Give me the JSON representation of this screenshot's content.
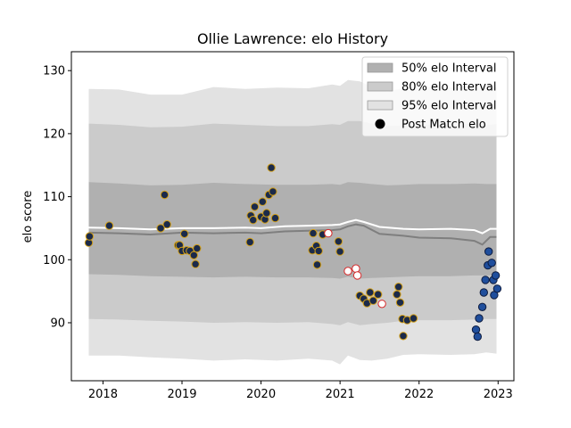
{
  "chart_data": {
    "type": "scatter",
    "title": "Ollie Lawrence: elo History",
    "xlabel": "",
    "ylabel": "elo score",
    "xlim": [
      2017.6,
      2023.2
    ],
    "ylim": [
      80.8,
      133
    ],
    "xticks": [
      2018,
      2019,
      2020,
      2021,
      2022,
      2023
    ],
    "xtick_labels": [
      "2018",
      "2019",
      "2020",
      "2021",
      "2022",
      "2023"
    ],
    "yticks": [
      90,
      100,
      110,
      120,
      130
    ],
    "ytick_labels": [
      "90",
      "100",
      "110",
      "120",
      "130"
    ],
    "grid": false,
    "legend_placement": "top-right",
    "legend": [
      {
        "label": "50% elo Interval",
        "kind": "patch",
        "color": "#b0b0b0"
      },
      {
        "label": "80% elo Interval",
        "kind": "patch",
        "color": "#cbcbcb"
      },
      {
        "label": "95% elo Interval",
        "kind": "patch",
        "color": "#e2e2e2"
      },
      {
        "label": "Post Match elo",
        "kind": "marker",
        "color": "#000000"
      }
    ],
    "bands": {
      "x": [
        2017.82,
        2018.2,
        2018.6,
        2019.0,
        2019.4,
        2019.8,
        2020.2,
        2020.6,
        2020.9,
        2021.0,
        2021.1,
        2021.25,
        2021.4,
        2021.6,
        2021.8,
        2022.0,
        2022.4,
        2022.7,
        2022.85,
        2022.98
      ],
      "p95_hi": [
        127.1,
        127.0,
        126.2,
        126.2,
        127.4,
        127.1,
        127.3,
        127.2,
        127.8,
        127.6,
        128.5,
        128.3,
        127.5,
        126.7,
        127.2,
        127.4,
        127.3,
        127.5,
        127.3,
        127.4
      ],
      "p95_lo": [
        84.8,
        84.8,
        84.5,
        84.3,
        84.0,
        84.2,
        84.0,
        84.3,
        84.0,
        83.4,
        84.8,
        84.1,
        84.0,
        84.3,
        84.9,
        85.0,
        84.9,
        85.0,
        85.3,
        85.1
      ],
      "p80_hi": [
        121.6,
        121.4,
        121.0,
        121.1,
        121.6,
        121.4,
        121.2,
        121.2,
        121.5,
        121.4,
        122.0,
        122.0,
        121.6,
        121.2,
        121.3,
        121.4,
        121.4,
        121.6,
        121.4,
        121.5
      ],
      "p80_lo": [
        90.6,
        90.5,
        90.3,
        90.2,
        90.0,
        90.1,
        90.0,
        90.1,
        89.8,
        89.6,
        90.1,
        89.6,
        89.8,
        90.0,
        90.3,
        90.4,
        90.4,
        90.5,
        90.6,
        90.6
      ],
      "p50_hi": [
        112.3,
        112.1,
        111.8,
        111.9,
        112.2,
        112.0,
        111.9,
        111.9,
        112.0,
        111.9,
        112.3,
        112.2,
        112.0,
        111.8,
        111.9,
        112.0,
        112.0,
        112.1,
        112.0,
        112.0
      ],
      "p50_lo": [
        97.7,
        97.6,
        97.4,
        97.3,
        97.2,
        97.3,
        97.2,
        97.2,
        97.1,
        97.0,
        97.3,
        97.0,
        97.1,
        97.2,
        97.3,
        97.4,
        97.4,
        97.5,
        97.5,
        97.5
      ]
    },
    "lines": [
      {
        "role": "median",
        "color": "#7f7f7f",
        "x": [
          2017.82,
          2018.2,
          2018.6,
          2019.0,
          2019.4,
          2019.8,
          2020.0,
          2020.3,
          2020.6,
          2020.9,
          2021.0,
          2021.1,
          2021.2,
          2021.3,
          2021.5,
          2021.8,
          2022.0,
          2022.4,
          2022.7,
          2022.8,
          2022.9,
          2022.98
        ],
        "y": [
          104.3,
          104.2,
          104.0,
          104.3,
          104.2,
          104.3,
          104.2,
          104.5,
          104.6,
          104.7,
          104.8,
          105.3,
          105.6,
          105.4,
          104.1,
          103.8,
          103.5,
          103.4,
          103.0,
          102.4,
          103.6,
          103.6
        ]
      },
      {
        "role": "mean",
        "color": "#ffffff",
        "x": [
          2017.82,
          2018.2,
          2018.6,
          2019.0,
          2019.4,
          2019.8,
          2020.0,
          2020.3,
          2020.6,
          2020.9,
          2021.0,
          2021.1,
          2021.2,
          2021.3,
          2021.5,
          2021.8,
          2022.0,
          2022.4,
          2022.7,
          2022.8,
          2022.9,
          2022.98
        ],
        "y": [
          105.1,
          105.0,
          104.8,
          105.0,
          105.0,
          105.1,
          105.0,
          105.3,
          105.4,
          105.5,
          105.6,
          106.0,
          106.3,
          106.0,
          105.2,
          104.9,
          104.8,
          104.9,
          104.7,
          104.2,
          104.9,
          104.9
        ]
      }
    ],
    "points": [
      {
        "group": "dark-gold",
        "fill": "#1b2a4a",
        "stroke": "#d4a017",
        "xy": [
          [
            2017.82,
            102.7
          ],
          [
            2017.83,
            103.7
          ],
          [
            2018.08,
            105.4
          ],
          [
            2018.73,
            105.0
          ],
          [
            2018.78,
            110.3
          ],
          [
            2018.81,
            105.6
          ],
          [
            2018.95,
            102.3
          ],
          [
            2018.97,
            102.3
          ],
          [
            2019.0,
            101.4
          ],
          [
            2019.03,
            104.1
          ],
          [
            2019.06,
            101.5
          ],
          [
            2019.1,
            101.4
          ],
          [
            2019.15,
            100.7
          ],
          [
            2019.17,
            99.3
          ],
          [
            2019.19,
            101.8
          ],
          [
            2019.86,
            102.8
          ],
          [
            2019.87,
            107.0
          ],
          [
            2019.9,
            106.3
          ],
          [
            2019.92,
            108.4
          ],
          [
            2020.0,
            106.8
          ],
          [
            2020.02,
            109.2
          ],
          [
            2020.05,
            106.4
          ],
          [
            2020.07,
            107.4
          ],
          [
            2020.1,
            110.3
          ],
          [
            2020.13,
            114.6
          ],
          [
            2020.15,
            110.8
          ],
          [
            2020.18,
            106.6
          ],
          [
            2020.65,
            101.5
          ],
          [
            2020.66,
            104.2
          ],
          [
            2020.7,
            102.2
          ],
          [
            2020.71,
            99.2
          ],
          [
            2020.73,
            101.4
          ],
          [
            2020.78,
            104.0
          ],
          [
            2020.98,
            102.9
          ],
          [
            2021.0,
            101.3
          ],
          [
            2021.25,
            94.3
          ],
          [
            2021.3,
            93.8
          ],
          [
            2021.34,
            93.1
          ],
          [
            2021.38,
            94.8
          ],
          [
            2021.42,
            93.5
          ],
          [
            2021.48,
            94.5
          ],
          [
            2021.72,
            94.5
          ],
          [
            2021.74,
            95.7
          ],
          [
            2021.76,
            93.2
          ],
          [
            2021.79,
            90.6
          ],
          [
            2021.8,
            87.9
          ],
          [
            2021.85,
            90.4
          ],
          [
            2021.93,
            90.7
          ]
        ]
      },
      {
        "group": "white-red",
        "fill": "#ffffff",
        "stroke": "#d62728",
        "xy": [
          [
            2020.85,
            104.2
          ],
          [
            2021.1,
            98.2
          ],
          [
            2021.2,
            98.6
          ],
          [
            2021.22,
            97.5
          ],
          [
            2021.53,
            93.0
          ]
        ]
      },
      {
        "group": "blue",
        "fill": "#1f4e9c",
        "stroke": "#0d1b3e",
        "xy": [
          [
            2022.72,
            88.9
          ],
          [
            2022.74,
            87.8
          ],
          [
            2022.76,
            90.7
          ],
          [
            2022.8,
            92.5
          ],
          [
            2022.82,
            94.8
          ],
          [
            2022.84,
            96.8
          ],
          [
            2022.87,
            99.1
          ],
          [
            2022.88,
            101.3
          ],
          [
            2022.92,
            99.5
          ],
          [
            2022.94,
            96.8
          ],
          [
            2022.95,
            94.4
          ],
          [
            2022.97,
            97.5
          ],
          [
            2022.99,
            95.4
          ]
        ]
      }
    ]
  }
}
